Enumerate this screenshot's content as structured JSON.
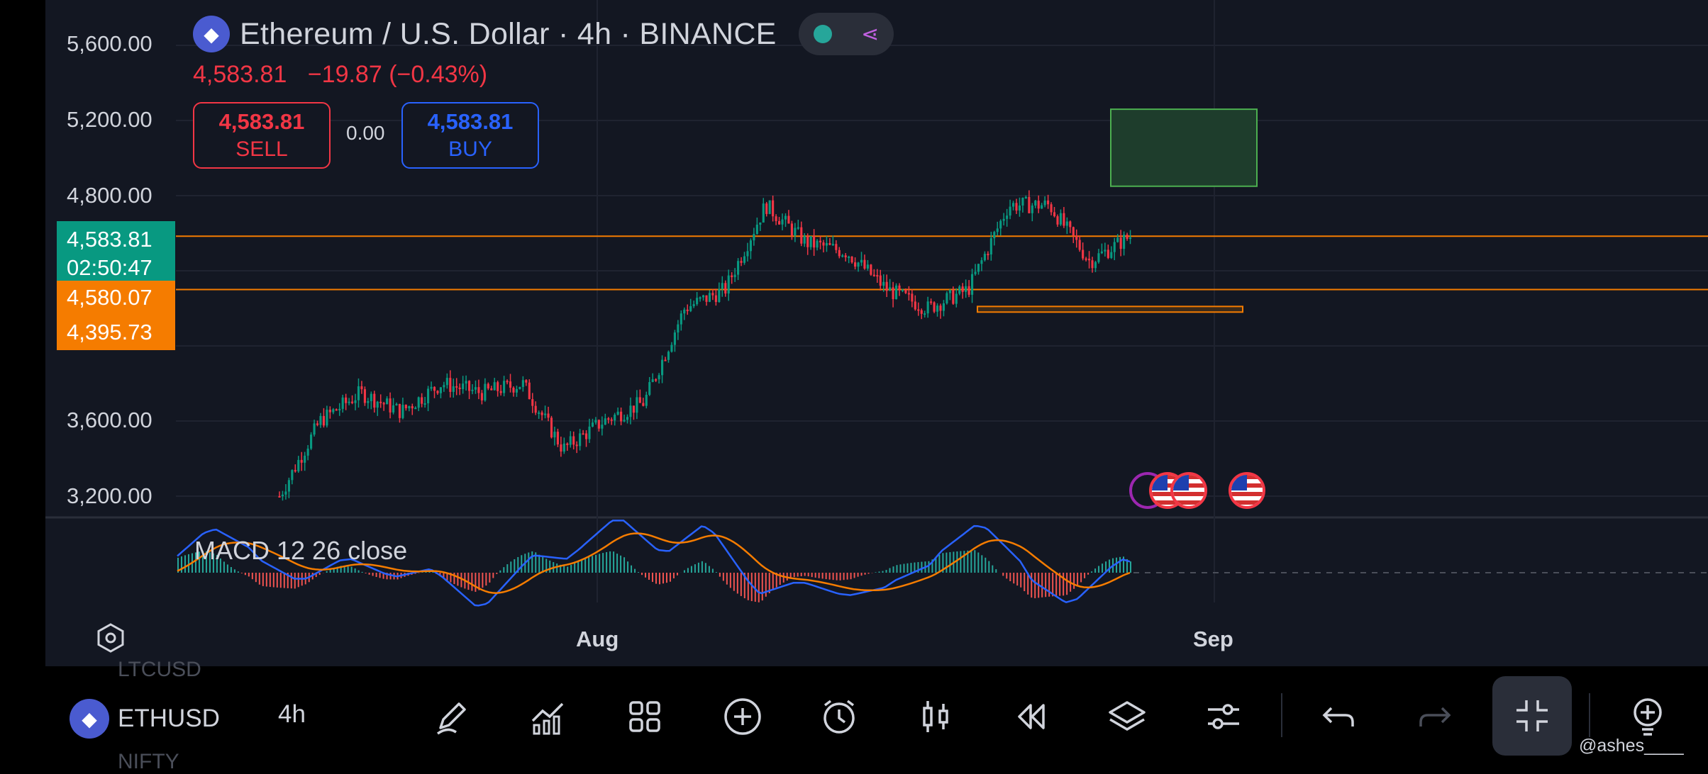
{
  "header": {
    "title": "Ethereum / U.S. Dollar · 4h · BINANCE",
    "last_price": "4,583.81",
    "change": "−19.87 (−0.43%)",
    "sell": {
      "value": "4,583.81",
      "label": "SELL"
    },
    "buy": {
      "value": "4,583.81",
      "label": "BUY"
    },
    "spread": "0.00",
    "icons": {
      "coin": "ethereum-icon",
      "status": "market-open-dot",
      "share": "share-icon"
    }
  },
  "price_axis": {
    "ticks": [
      "5,600.00",
      "5,200.00",
      "4,800.00",
      "3,600.00",
      "3,200.00"
    ],
    "current_price_tag": {
      "price": "4,583.81",
      "countdown": "02:50:47"
    },
    "level_tags": [
      "4,580.07",
      "4,395.73"
    ]
  },
  "indicator": {
    "label": "MACD 12 26 close"
  },
  "time_axis": {
    "labels": [
      "Aug",
      "Sep"
    ]
  },
  "ghost_watchlist": {
    "items": [
      "LTCUSD",
      "NIFTY"
    ]
  },
  "bottom_bar": {
    "symbol": "ETHUSD",
    "interval": "4h",
    "tools": [
      "pencil-icon",
      "indicators-icon",
      "grid-icon",
      "plus-circle-icon",
      "alarm-icon",
      "candles-icon",
      "replay-icon",
      "layers-icon",
      "settings-sliders-icon",
      "undo-icon",
      "redo-icon",
      "minimize-icon",
      "lightbulb-plus-icon"
    ]
  },
  "watermark": "@ashes____",
  "colors": {
    "background": "#131722",
    "up": "#089981",
    "down": "#f23645",
    "level_line": "#f57c00",
    "macd_line": "#2962ff",
    "signal_line": "#f57c00",
    "zone_green": "#1e3d2c"
  },
  "chart_data": {
    "type": "candlestick",
    "y_range": [
      3150,
      5650
    ],
    "x_labels": [
      "Aug",
      "Sep"
    ],
    "close_path_approx": [
      {
        "t": "Jul-19",
        "v": 3200
      },
      {
        "t": "Jul-21",
        "v": 3600
      },
      {
        "t": "Jul-23",
        "v": 3750
      },
      {
        "t": "Jul-25",
        "v": 3650
      },
      {
        "t": "Jul-28",
        "v": 3800
      },
      {
        "t": "Jul-30",
        "v": 3750
      },
      {
        "t": "Aug-01",
        "v": 3800
      },
      {
        "t": "Aug-03",
        "v": 3450
      },
      {
        "t": "Aug-05",
        "v": 3600
      },
      {
        "t": "Aug-07",
        "v": 3700
      },
      {
        "t": "Aug-09",
        "v": 4200
      },
      {
        "t": "Aug-11",
        "v": 4300
      },
      {
        "t": "Aug-13",
        "v": 4750
      },
      {
        "t": "Aug-14",
        "v": 4550
      },
      {
        "t": "Aug-16",
        "v": 4500
      },
      {
        "t": "Aug-18",
        "v": 4300
      },
      {
        "t": "Aug-20",
        "v": 4200
      },
      {
        "t": "Aug-22",
        "v": 4300
      },
      {
        "t": "Aug-23",
        "v": 4750
      },
      {
        "t": "Aug-25",
        "v": 4750
      },
      {
        "t": "Aug-26",
        "v": 4450
      },
      {
        "t": "Aug-28",
        "v": 4583.81
      }
    ],
    "levels": [
      4583.81,
      4300
    ],
    "zones": [
      {
        "type": "target",
        "from": 4850,
        "to": 5260
      },
      {
        "type": "support",
        "from": 4180,
        "to": 4210
      }
    ],
    "macd": {
      "label": "MACD 12 26 close"
    }
  }
}
